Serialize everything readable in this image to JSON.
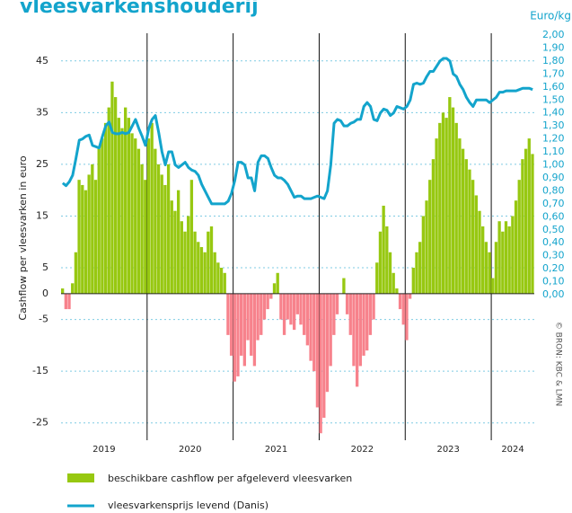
{
  "chart_data": {
    "type": "bar_line",
    "title": "vleesvarkenshouderij",
    "ylabel": "Cashflow per vleesvarken in euro",
    "y2label": "Euro/kg",
    "source": "© BRON: KBC & LMN",
    "groups": [
      {
        "label": "2019",
        "count": 26
      },
      {
        "label": "2020",
        "count": 26
      },
      {
        "label": "2021",
        "count": 26
      },
      {
        "label": "2022",
        "count": 26
      },
      {
        "label": "2023",
        "count": 26
      },
      {
        "label": "2024",
        "count": 13
      }
    ],
    "ylim": [
      -28,
      50
    ],
    "yticks": [
      45,
      35,
      25,
      15,
      5,
      0,
      -5,
      -15,
      -25
    ],
    "y2lim": [
      -1.107,
      2.0
    ],
    "y2ticks": [
      {
        "value": 0,
        "label": "0,00"
      },
      {
        "value": 0.1,
        "label": "0,10"
      },
      {
        "value": 0.2,
        "label": "0,20"
      },
      {
        "value": 0.3,
        "label": "0,30"
      },
      {
        "value": 0.4,
        "label": "0,40"
      },
      {
        "value": 0.5,
        "label": "0,50"
      },
      {
        "value": 0.6,
        "label": "0,60"
      },
      {
        "value": 0.7,
        "label": "0,70"
      },
      {
        "value": 0.8,
        "label": "0,80"
      },
      {
        "value": 0.9,
        "label": "0,90"
      },
      {
        "value": 1.0,
        "label": "1,00"
      },
      {
        "value": 1.1,
        "label": "1,10"
      },
      {
        "value": 1.2,
        "label": "1,20"
      },
      {
        "value": 1.3,
        "label": "1,30"
      },
      {
        "value": 1.4,
        "label": "1,40"
      },
      {
        "value": 1.5,
        "label": "1,50"
      },
      {
        "value": 1.6,
        "label": "1,60"
      },
      {
        "value": 1.7,
        "label": "1,70"
      },
      {
        "value": 1.8,
        "label": "1,80"
      },
      {
        "value": 1.9,
        "label": "1,90"
      },
      {
        "value": 2.0,
        "label": "2,00"
      }
    ],
    "grid": true,
    "series": [
      {
        "name": "beschikbare cashflow per afgeleverd vleesvarken",
        "color": "#97c811",
        "negative_color": "#f7828c",
        "values": [
          1,
          -3,
          -3,
          2,
          8,
          22,
          21,
          20,
          23,
          25,
          22,
          28,
          30,
          33,
          36,
          41,
          38,
          34,
          32,
          36,
          34,
          31,
          30,
          28,
          25,
          22,
          30,
          33,
          28,
          25,
          23,
          21,
          25,
          18,
          16,
          20,
          14,
          12,
          15,
          22,
          12,
          10,
          9,
          8,
          12,
          13,
          8,
          6,
          5,
          4,
          -8,
          -12,
          -17,
          -16,
          -12,
          -14,
          -9,
          -12,
          -14,
          -9,
          -8,
          -5,
          -3,
          -1,
          2,
          4,
          -5,
          -8,
          -5,
          -6,
          -7,
          -4,
          -6,
          -8,
          -10,
          -13,
          -15,
          -22,
          -27,
          -24,
          -19,
          -14,
          -8,
          -4,
          0,
          3,
          -4,
          -8,
          -14,
          -18,
          -14,
          -12,
          -11,
          -8,
          -5,
          6,
          12,
          17,
          13,
          8,
          4,
          1,
          -3,
          -6,
          -9,
          -1,
          5,
          8,
          10,
          15,
          18,
          22,
          26,
          30,
          33,
          35,
          34,
          38,
          36,
          33,
          30,
          28,
          26,
          24,
          22,
          19,
          16,
          13,
          10,
          8,
          3,
          10,
          14,
          12,
          14,
          13,
          15,
          18,
          22,
          26,
          28,
          30,
          27
        ]
      },
      {
        "name": "vleesvarkensprijs levend (Danis)",
        "color": "#13a4cc",
        "axis": "y2",
        "values": [
          0.86,
          0.84,
          0.87,
          0.92,
          1.05,
          1.19,
          1.2,
          1.22,
          1.23,
          1.15,
          1.14,
          1.13,
          1.22,
          1.3,
          1.33,
          1.25,
          1.24,
          1.24,
          1.25,
          1.24,
          1.25,
          1.3,
          1.35,
          1.28,
          1.22,
          1.15,
          1.28,
          1.35,
          1.38,
          1.25,
          1.1,
          1.0,
          1.1,
          1.1,
          1.0,
          0.98,
          1.0,
          1.02,
          0.98,
          0.96,
          0.95,
          0.92,
          0.85,
          0.8,
          0.75,
          0.7,
          0.7,
          0.7,
          0.7,
          0.7,
          0.72,
          0.78,
          0.88,
          1.02,
          1.02,
          1.0,
          0.9,
          0.9,
          0.8,
          1.02,
          1.07,
          1.07,
          1.05,
          0.98,
          0.92,
          0.9,
          0.9,
          0.88,
          0.85,
          0.8,
          0.75,
          0.76,
          0.76,
          0.74,
          0.74,
          0.74,
          0.75,
          0.76,
          0.75,
          0.74,
          0.8,
          1.0,
          1.32,
          1.35,
          1.34,
          1.3,
          1.3,
          1.32,
          1.33,
          1.35,
          1.35,
          1.45,
          1.48,
          1.45,
          1.35,
          1.34,
          1.4,
          1.43,
          1.42,
          1.38,
          1.4,
          1.45,
          1.44,
          1.43,
          1.45,
          1.5,
          1.62,
          1.63,
          1.62,
          1.63,
          1.68,
          1.72,
          1.72,
          1.76,
          1.8,
          1.82,
          1.82,
          1.8,
          1.7,
          1.68,
          1.62,
          1.58,
          1.52,
          1.48,
          1.45,
          1.5,
          1.5,
          1.5,
          1.5,
          1.48,
          1.5,
          1.52,
          1.56,
          1.56,
          1.57,
          1.57,
          1.57,
          1.57,
          1.58,
          1.59,
          1.59,
          1.59,
          1.58
        ]
      }
    ]
  }
}
